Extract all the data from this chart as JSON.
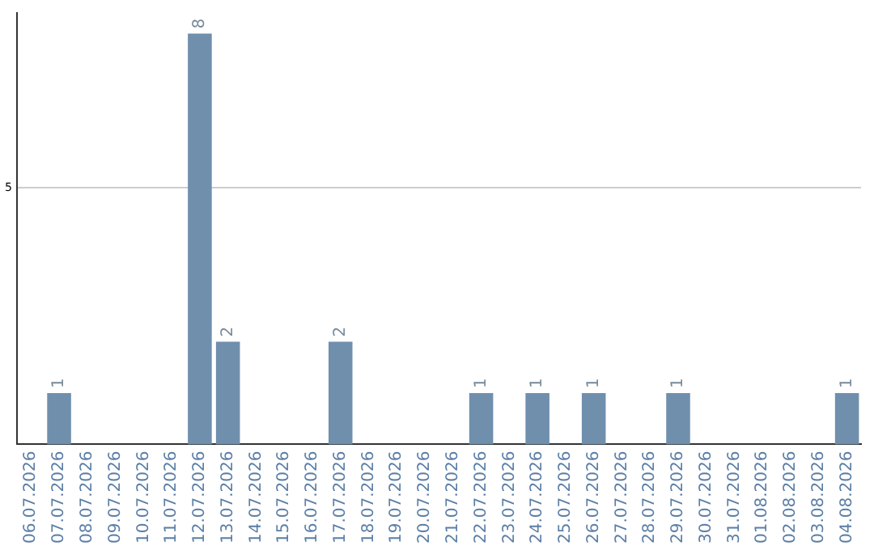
{
  "chart_data": {
    "type": "bar",
    "categories": [
      "06.07.2026",
      "07.07.2026",
      "08.07.2026",
      "09.07.2026",
      "10.07.2026",
      "11.07.2026",
      "12.07.2026",
      "13.07.2026",
      "14.07.2026",
      "15.07.2026",
      "16.07.2026",
      "17.07.2026",
      "18.07.2026",
      "19.07.2026",
      "20.07.2026",
      "21.07.2026",
      "22.07.2026",
      "23.07.2026",
      "24.07.2026",
      "25.07.2026",
      "26.07.2026",
      "27.07.2026",
      "28.07.2026",
      "29.07.2026",
      "30.07.2026",
      "31.07.2026",
      "01.08.2026",
      "02.08.2026",
      "03.08.2026",
      "04.08.2026"
    ],
    "values": [
      0,
      1,
      0,
      0,
      0,
      0,
      8,
      2,
      0,
      0,
      0,
      2,
      0,
      0,
      0,
      0,
      1,
      0,
      1,
      0,
      1,
      0,
      0,
      1,
      0,
      0,
      0,
      0,
      0,
      1
    ],
    "value_labels": [
      null,
      "1",
      null,
      null,
      null,
      null,
      "8",
      "2",
      null,
      null,
      null,
      "2",
      null,
      null,
      null,
      null,
      "1",
      null,
      "1",
      null,
      "1",
      null,
      null,
      "1",
      null,
      null,
      null,
      null,
      null,
      "1"
    ],
    "color": "#6f8fad",
    "ylim": [
      0,
      8.4
    ],
    "yticks": [
      5
    ],
    "grid": "y",
    "legend": false
  }
}
